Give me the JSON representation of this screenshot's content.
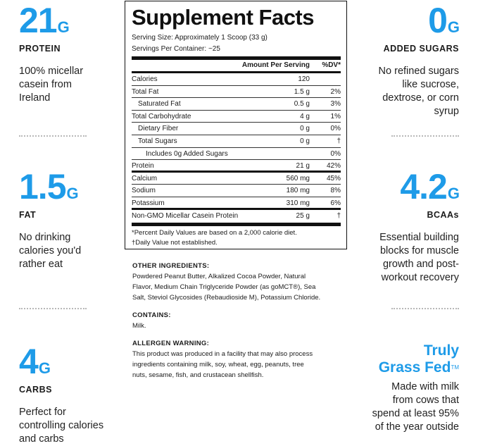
{
  "left_stats": [
    {
      "value": "21",
      "unit": "G",
      "label": "PROTEIN",
      "description_lines": [
        "100% micellar",
        "casein from",
        "Ireland"
      ]
    },
    {
      "value": "1.5",
      "unit": "G",
      "label": "FAT",
      "description_lines": [
        "No drinking",
        "calories you'd",
        "rather eat"
      ]
    },
    {
      "value": "4",
      "unit": "G",
      "label": "CARBS",
      "description_lines": [
        "Perfect for",
        "controlling calories",
        "and carbs"
      ]
    }
  ],
  "right_stats": [
    {
      "value": "0",
      "unit": "G",
      "label": "ADDED SUGARS",
      "description_lines": [
        "No refined sugars",
        "like sucrose,",
        "dextrose, or corn",
        "syrup"
      ]
    },
    {
      "value": "4.2",
      "unit": "G",
      "label": "BCAAs",
      "description_lines": [
        "Essential building",
        "blocks for muscle",
        "growth and post-",
        "workout recovery"
      ]
    },
    {
      "title_lines": [
        "Truly",
        "Grass Fed"
      ],
      "trademark": "TM",
      "description_lines": [
        "Made with milk",
        "from cows that",
        "spend at least 95%",
        "of the year outside"
      ]
    }
  ],
  "facts": {
    "title": "Supplement Facts",
    "serving_size": "Serving Size: Approximately 1 Scoop (33 g)",
    "servings_per_container": "Servings Per Container: ~25",
    "header_amount": "Amount Per Serving",
    "header_dv": "%DV*",
    "rows": [
      {
        "name": "Calories",
        "amount": "120",
        "dv": ""
      },
      {
        "name": "Total Fat",
        "amount": "1.5 g",
        "dv": "2%"
      },
      {
        "name": "Saturated Fat",
        "amount": "0.5 g",
        "dv": "3%"
      },
      {
        "name": "Total Carbohydrate",
        "amount": "4 g",
        "dv": "1%"
      },
      {
        "name": "Dietary Fiber",
        "amount": "0 g",
        "dv": "0%"
      },
      {
        "name": "Total Sugars",
        "amount": "0 g",
        "dv": "†"
      },
      {
        "name": "Includes 0g Added Sugars",
        "amount": "",
        "dv": "0%"
      },
      {
        "name": "Protein",
        "amount": "21 g",
        "dv": "42%"
      },
      {
        "name": "Calcium",
        "amount": "560 mg",
        "dv": "45%"
      },
      {
        "name": "Sodium",
        "amount": "180 mg",
        "dv": "8%"
      },
      {
        "name": "Potassium",
        "amount": "310 mg",
        "dv": "6%"
      },
      {
        "name": "Non-GMO Micellar Casein Protein",
        "amount": "25 g",
        "dv": "†"
      }
    ],
    "footnote_1": "*Percent Daily Values are based on a 2,000 calorie diet.",
    "footnote_2": "†Daily Value not established."
  },
  "other_ingredients": {
    "heading": "OTHER INGREDIENTS:",
    "lines": [
      "Powdered Peanut Butter, Alkalized Cocoa Powder, Natural",
      "Flavor, Medium Chain Triglyceride Powder (as goMCT®), Sea",
      "Salt, Steviol Glycosides (Rebaudioside M), Potassium Chloride."
    ]
  },
  "contains": {
    "heading": "CONTAINS:",
    "text": "Milk."
  },
  "allergen": {
    "heading": "ALLERGEN WARNING:",
    "lines": [
      "This product was produced in a facility that may also process",
      "ingredients containing milk, soy, wheat, egg, peanuts, tree",
      "nuts, sesame, fish, and crustacean shellfish."
    ]
  }
}
